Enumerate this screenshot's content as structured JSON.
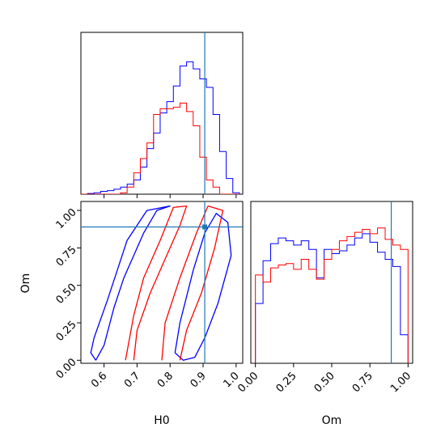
{
  "chart_data": {
    "type": "corner",
    "parameters": [
      "H0",
      "Om"
    ],
    "colors": {
      "blue": "#0000ff",
      "red": "#ff0000",
      "truth": "#1f77b4"
    },
    "truth": {
      "H0": 0.905,
      "Om": 0.89
    },
    "grid": false,
    "panels": [
      {
        "id": "hist_H0",
        "type": "step-histogram",
        "param": "H0",
        "xlim": [
          0.53,
          1.02
        ],
        "x_ticks": [
          0.6,
          0.7,
          0.8,
          0.9,
          1.0
        ],
        "y_ticks_visible": false,
        "bin_edges": [
          0.53,
          0.55,
          0.57,
          0.59,
          0.61,
          0.63,
          0.65,
          0.67,
          0.69,
          0.71,
          0.73,
          0.75,
          0.77,
          0.79,
          0.81,
          0.83,
          0.85,
          0.87,
          0.89,
          0.91,
          0.93,
          0.95,
          0.97,
          0.99,
          1.01
        ],
        "series": [
          {
            "color": "blue",
            "counts": [
              0,
              0.005,
              0.01,
              0.02,
              0.025,
              0.035,
              0.05,
              0.07,
              0.1,
              0.19,
              0.32,
              0.43,
              0.57,
              0.65,
              0.76,
              0.9,
              0.93,
              0.88,
              0.81,
              0.75,
              0.56,
              0.3,
              0.11,
              0.01
            ]
          },
          {
            "color": "red",
            "counts": [
              0,
              0,
              0,
              0,
              0,
              0,
              0.01,
              0.05,
              0.15,
              0.25,
              0.36,
              0.56,
              0.6,
              0.6,
              0.61,
              0.64,
              0.58,
              0.48,
              0.26,
              0.1,
              0.05,
              0,
              0,
              0
            ]
          }
        ]
      },
      {
        "id": "contour_H0_Om",
        "type": "contour",
        "x_param": "H0",
        "y_param": "Om",
        "xlim": [
          0.53,
          1.02
        ],
        "ylim": [
          -0.02,
          1.06
        ],
        "x_ticks": [
          "0.6",
          "0.7",
          "0.8",
          "0.9",
          "1.0"
        ],
        "y_ticks": [
          "0.00",
          "0.25",
          "0.50",
          "0.75",
          "1.00"
        ],
        "series": [
          {
            "color": "blue",
            "levels": [
              [
                [
                  0.575,
                  0.0
                ],
                [
                  0.6,
                  0.1
                ],
                [
                  0.63,
                  0.35
                ],
                [
                  0.66,
                  0.55
                ],
                [
                  0.69,
                  0.7
                ],
                [
                  0.72,
                  0.85
                ],
                [
                  0.76,
                  1.0
                ],
                [
                  0.8,
                  1.03
                ],
                [
                  0.73,
                  1.0
                ],
                [
                  0.67,
                  0.8
                ],
                [
                  0.64,
                  0.6
                ],
                [
                  0.61,
                  0.4
                ],
                [
                  0.57,
                  0.15
                ],
                [
                  0.56,
                  0.05
                ],
                [
                  0.575,
                  0.0
                ]
              ],
              [
                [
                  0.815,
                  0.05
                ],
                [
                  0.83,
                  0.25
                ],
                [
                  0.87,
                  0.6
                ],
                [
                  0.905,
                  0.85
                ],
                [
                  0.94,
                  0.98
                ],
                [
                  0.975,
                  0.92
                ],
                [
                  0.985,
                  0.7
                ],
                [
                  0.945,
                  0.38
                ],
                [
                  0.905,
                  0.15
                ],
                [
                  0.875,
                  0.02
                ],
                [
                  0.84,
                  0.0
                ],
                [
                  0.815,
                  0.05
                ]
              ]
            ]
          },
          {
            "color": "red",
            "levels": [
              [
                [
                  0.665,
                  0.0
                ],
                [
                  0.69,
                  0.3
                ],
                [
                  0.72,
                  0.55
                ],
                [
                  0.77,
                  0.8
                ],
                [
                  0.81,
                  1.02
                ],
                [
                  0.85,
                  1.03
                ],
                [
                  0.83,
                  0.9
                ],
                [
                  0.78,
                  0.65
                ],
                [
                  0.74,
                  0.45
                ],
                [
                  0.7,
                  0.2
                ],
                [
                  0.69,
                  0.0
                ]
              ],
              [
                [
                  0.775,
                  0.0
                ],
                [
                  0.785,
                  0.25
                ],
                [
                  0.83,
                  0.55
                ],
                [
                  0.88,
                  0.85
                ],
                [
                  0.915,
                  1.03
                ],
                [
                  0.96,
                  1.0
                ],
                [
                  0.935,
                  0.75
                ],
                [
                  0.895,
                  0.45
                ],
                [
                  0.85,
                  0.2
                ],
                [
                  0.83,
                  0.0
                ]
              ]
            ]
          }
        ]
      },
      {
        "id": "hist_Om",
        "type": "step-histogram",
        "param": "Om",
        "xlim": [
          -0.03,
          1.03
        ],
        "x_ticks": [
          "0.00",
          "0.25",
          "0.50",
          "0.75",
          "1.00"
        ],
        "y_ticks_visible": false,
        "bin_edges": [
          0.0,
          0.05,
          0.1,
          0.15,
          0.2,
          0.25,
          0.3,
          0.35,
          0.4,
          0.45,
          0.5,
          0.55,
          0.6,
          0.65,
          0.7,
          0.75,
          0.8,
          0.85,
          0.9,
          0.95,
          1.0
        ],
        "series": [
          {
            "color": "blue",
            "counts": [
              0.42,
              0.72,
              0.84,
              0.88,
              0.86,
              0.83,
              0.86,
              0.8,
              0.6,
              0.8,
              0.77,
              0.79,
              0.83,
              0.88,
              0.91,
              0.85,
              0.78,
              0.73,
              0.68,
              0.2
            ]
          },
          {
            "color": "red",
            "counts": [
              0.62,
              0.57,
              0.67,
              0.69,
              0.7,
              0.66,
              0.73,
              0.66,
              0.59,
              0.73,
              0.8,
              0.86,
              0.89,
              0.92,
              0.94,
              0.91,
              0.95,
              0.87,
              0.83,
              0.8
            ]
          }
        ]
      }
    ],
    "axis_labels": {
      "bottom_left_x": "H0",
      "bottom_right_x": "Om",
      "left_y": "Om"
    }
  }
}
